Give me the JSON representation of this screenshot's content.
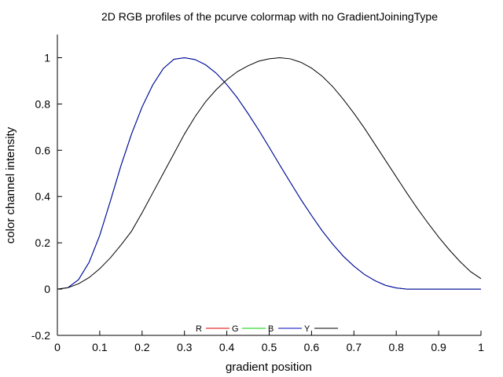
{
  "chart_data": {
    "type": "line",
    "title": "2D RGB profiles of the pcurve colormap with no GradientJoiningType",
    "xlabel": "gradient position",
    "ylabel": "color channel intensity",
    "xlim": [
      0,
      1
    ],
    "ylim": [
      -0.2,
      1.1
    ],
    "xticks": [
      0,
      0.1,
      0.2,
      0.3,
      0.4,
      0.5,
      0.6,
      0.7,
      0.8,
      0.9,
      1
    ],
    "xtick_labels": [
      "0",
      "0.1",
      "0.2",
      "0.3",
      "0.4",
      "0.5",
      "0.6",
      "0.7",
      "0.8",
      "0.9",
      "1"
    ],
    "yticks": [
      -0.2,
      0,
      0.2,
      0.4,
      0.6,
      0.8,
      1
    ],
    "ytick_labels": [
      "-0.2",
      "0",
      "0.2",
      "0.4",
      "0.6",
      "0.8",
      "1"
    ],
    "grid": false,
    "legend_placement": "bottom-center",
    "x": [
      0,
      0.025,
      0.05,
      0.075,
      0.1,
      0.125,
      0.15,
      0.175,
      0.2,
      0.225,
      0.25,
      0.275,
      0.3,
      0.325,
      0.35,
      0.375,
      0.4,
      0.425,
      0.45,
      0.475,
      0.5,
      0.525,
      0.55,
      0.575,
      0.6,
      0.625,
      0.65,
      0.675,
      0.7,
      0.725,
      0.75,
      0.775,
      0.8,
      0.825,
      0.85,
      0.875,
      0.9,
      0.925,
      0.95,
      0.975,
      1
    ],
    "series": [
      {
        "name": "R",
        "color": "#e00000",
        "values": [
          0,
          0.006,
          0.041,
          0.116,
          0.232,
          0.38,
          0.533,
          0.67,
          0.787,
          0.882,
          0.953,
          0.993,
          1,
          0.992,
          0.969,
          0.933,
          0.884,
          0.826,
          0.759,
          0.688,
          0.613,
          0.536,
          0.461,
          0.387,
          0.318,
          0.252,
          0.194,
          0.142,
          0.099,
          0.063,
          0.036,
          0.016,
          0.005,
          0,
          0,
          0,
          0,
          0,
          0,
          0,
          0
        ]
      },
      {
        "name": "G",
        "color": "#00d000",
        "values": [
          0,
          0.006,
          0.041,
          0.116,
          0.232,
          0.38,
          0.533,
          0.67,
          0.787,
          0.882,
          0.953,
          0.993,
          1,
          0.992,
          0.969,
          0.933,
          0.884,
          0.826,
          0.759,
          0.688,
          0.613,
          0.536,
          0.461,
          0.387,
          0.318,
          0.252,
          0.194,
          0.142,
          0.099,
          0.063,
          0.036,
          0.016,
          0.005,
          0,
          0,
          0,
          0,
          0,
          0,
          0,
          0
        ]
      },
      {
        "name": "B",
        "color": "#0000c0",
        "values": [
          0,
          0.006,
          0.041,
          0.116,
          0.232,
          0.38,
          0.533,
          0.67,
          0.787,
          0.882,
          0.953,
          0.993,
          1,
          0.992,
          0.969,
          0.933,
          0.884,
          0.826,
          0.759,
          0.688,
          0.613,
          0.536,
          0.461,
          0.387,
          0.318,
          0.252,
          0.194,
          0.142,
          0.099,
          0.063,
          0.036,
          0.016,
          0.005,
          0,
          0,
          0,
          0,
          0,
          0,
          0,
          0
        ]
      },
      {
        "name": "Y",
        "color": "#000000",
        "values": [
          0,
          0.006,
          0.023,
          0.05,
          0.088,
          0.135,
          0.19,
          0.25,
          0.33,
          0.415,
          0.5,
          0.585,
          0.67,
          0.745,
          0.81,
          0.862,
          0.905,
          0.94,
          0.965,
          0.985,
          0.995,
          1,
          0.995,
          0.98,
          0.955,
          0.92,
          0.875,
          0.82,
          0.76,
          0.695,
          0.625,
          0.555,
          0.485,
          0.415,
          0.348,
          0.285,
          0.225,
          0.17,
          0.12,
          0.076,
          0.045
        ]
      }
    ]
  }
}
